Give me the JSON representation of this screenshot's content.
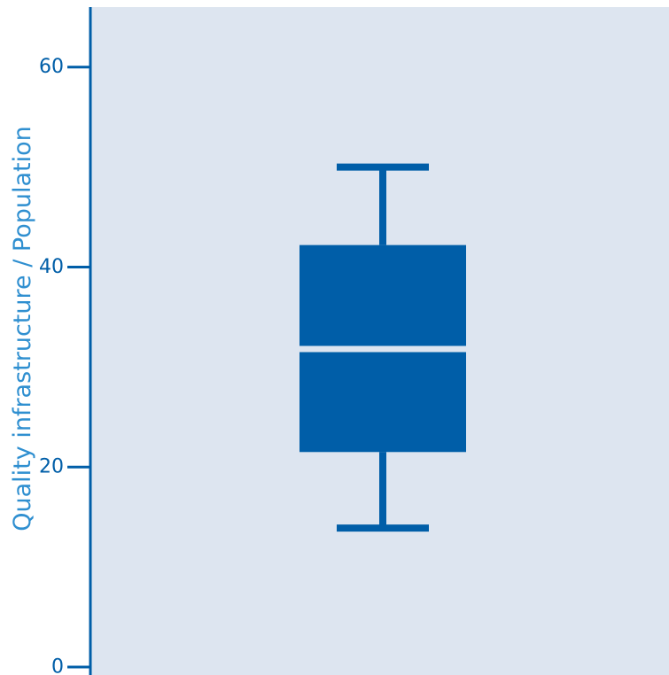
{
  "chart_data": {
    "type": "box",
    "title": "",
    "xlabel": "",
    "ylabel": "Quality infrastructure / Population",
    "ylim": [
      -0.8,
      66
    ],
    "yticks": [
      0,
      20,
      40,
      60
    ],
    "grid": false,
    "boxes": [
      {
        "whisker_low": 13.9,
        "q1": 21.5,
        "median": 31.8,
        "q3": 42.2,
        "whisker_high": 50.0
      }
    ]
  },
  "colors": {
    "plot_background": "#dde5f0",
    "axis": "#005ea8",
    "box": "#005ea8",
    "median": "#dde5f0",
    "tick_text": "#005ea8",
    "title_text": "#2f8fd0"
  }
}
